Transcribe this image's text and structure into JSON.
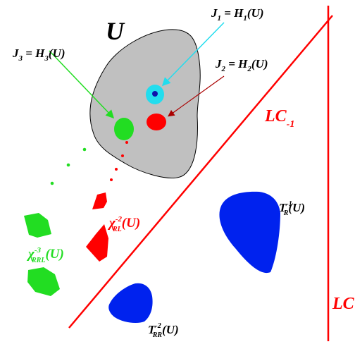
{
  "set_label": "U",
  "labels": {
    "j1": {
      "lhs": "J",
      "lhs_sub": "1",
      "eq": " = H",
      "rhs_sub": "1",
      "arg": "(U)"
    },
    "j2": {
      "lhs": "J",
      "lhs_sub": "2",
      "eq": " = H",
      "rhs_sub": "2",
      "arg": "(U)"
    },
    "j3": {
      "lhs": "J",
      "lhs_sub": "3",
      "eq": " = H",
      "rhs_sub": "3",
      "arg": "(U)"
    },
    "lc_minus1": {
      "base": "LC",
      "sub": "-1"
    },
    "lc": {
      "base": "LC"
    },
    "tr_inv": {
      "base": "T",
      "sub": "R",
      "sup": "-1",
      "arg": "(U)"
    },
    "trr_inv2": {
      "base": "T",
      "sub": "RR",
      "sup": "-2",
      "arg": "(U)"
    },
    "chi_rl": {
      "base": "χ",
      "sub": "RL",
      "sup": "-2",
      "arg": "(U)"
    },
    "chi_rrl": {
      "base": "χ",
      "sub": "RRL",
      "sup": "-3",
      "arg": "(U)"
    }
  },
  "colors": {
    "region_u": "#c0c0c0",
    "red": "#ff0000",
    "green": "#22dd22",
    "blue": "#0022ee",
    "cyan": "#22ddee",
    "navy": "#1010aa",
    "dark_red": "#aa0000",
    "text": "#000000"
  }
}
